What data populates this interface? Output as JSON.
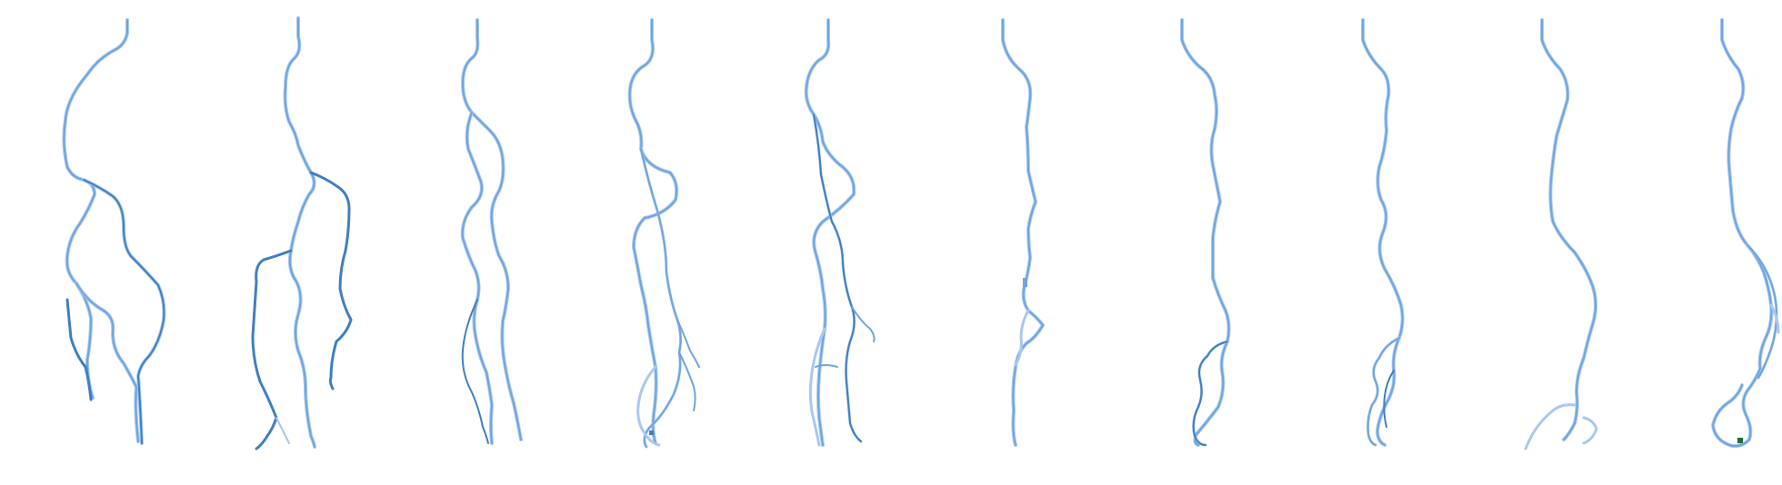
{
  "figure": {
    "panel_count": 10,
    "colors": {
      "background": "#ffffff",
      "trace_light": "#a9c8ef",
      "trace_mid": "#6fa4df",
      "trace_dark": "#3f7fbf",
      "tip_marker": "#1f6b3a"
    },
    "panels": [
      {
        "id": "panel-1",
        "branch_count": 4
      },
      {
        "id": "panel-2",
        "branch_count": 4
      },
      {
        "id": "panel-3",
        "branch_count": 3
      },
      {
        "id": "panel-4",
        "branch_count": 4
      },
      {
        "id": "panel-5",
        "branch_count": 4
      },
      {
        "id": "panel-6",
        "branch_count": 1
      },
      {
        "id": "panel-7",
        "branch_count": 2
      },
      {
        "id": "panel-8",
        "branch_count": 3
      },
      {
        "id": "panel-9",
        "branch_count": 2
      },
      {
        "id": "panel-10",
        "branch_count": 3,
        "has_tip_marker": true
      }
    ]
  }
}
